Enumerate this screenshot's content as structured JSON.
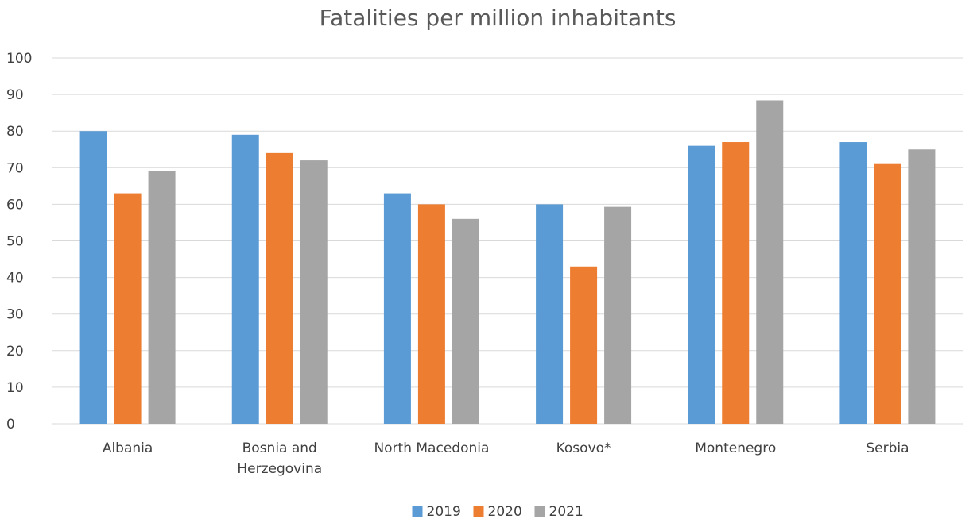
{
  "chart_data": {
    "type": "bar",
    "title": "Fatalities per million inhabitants",
    "xlabel": "",
    "ylabel": "",
    "ylim": [
      0,
      100
    ],
    "yticks": [
      0,
      10,
      20,
      30,
      40,
      50,
      60,
      70,
      80,
      90,
      100
    ],
    "grid": true,
    "legend_position": "bottom",
    "categories": [
      [
        "Albania"
      ],
      [
        "Bosnia and",
        "Herzegovina"
      ],
      [
        "North Macedonia"
      ],
      [
        "Kosovo*"
      ],
      [
        "Montenegro"
      ],
      [
        "Serbia"
      ]
    ],
    "series": [
      {
        "name": "2019",
        "color": "#5b9bd5",
        "values": [
          80,
          79,
          63,
          60,
          76,
          77
        ]
      },
      {
        "name": "2020",
        "color": "#ed7d31",
        "values": [
          63,
          74,
          60,
          43,
          77,
          71
        ]
      },
      {
        "name": "2021",
        "color": "#a5a5a5",
        "values": [
          69,
          72,
          56,
          59.3,
          88.4,
          75
        ]
      }
    ]
  }
}
